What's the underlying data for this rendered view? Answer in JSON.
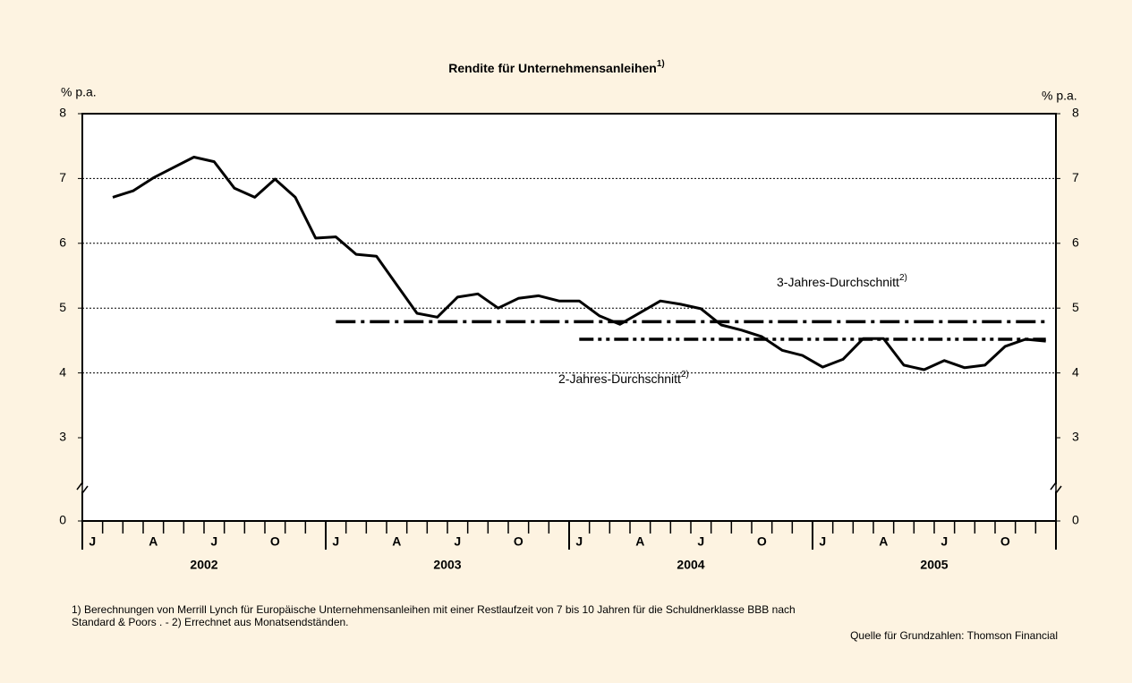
{
  "chart_data": {
    "type": "line",
    "title": "Rendite für Unternehmensanleihen",
    "title_note": "1)",
    "y_label": "% p.a.",
    "y2_label": "% p.a.",
    "categories": [
      "J",
      null,
      null,
      "A",
      null,
      null,
      "J",
      null,
      null,
      "O",
      null,
      null,
      "J",
      null,
      null,
      "A",
      null,
      null,
      "J",
      null,
      null,
      "O",
      null,
      null,
      "J",
      null,
      null,
      "A",
      null,
      null,
      "J",
      null,
      null,
      "O",
      null,
      null,
      "J",
      null,
      null,
      "A",
      null,
      null,
      "J",
      null,
      null,
      "O",
      null,
      null
    ],
    "years": [
      "2002",
      "2003",
      "2004",
      "2005"
    ],
    "series": [
      {
        "name": null,
        "color": "#000000",
        "style": "solid",
        "values": [
          null,
          6.71,
          6.81,
          7.01,
          7.17,
          7.33,
          7.26,
          6.85,
          6.71,
          6.99,
          6.71,
          6.08,
          6.1,
          5.83,
          5.8,
          5.36,
          4.92,
          4.86,
          5.17,
          5.22,
          5.0,
          5.15,
          5.19,
          5.11,
          5.11,
          4.88,
          4.75,
          4.93,
          5.11,
          5.06,
          4.99,
          4.74,
          4.66,
          4.56,
          4.35,
          4.27,
          4.09,
          4.21,
          4.53,
          4.53,
          4.12,
          4.05,
          4.19,
          4.08,
          4.12,
          4.41,
          4.52,
          4.49
        ]
      },
      {
        "name": "3-Jahres-Durchschnitt",
        "note": "2)",
        "color": "#000000",
        "style": "dash-dot",
        "values": [
          null,
          null,
          null,
          null,
          null,
          null,
          null,
          null,
          null,
          null,
          null,
          null,
          4.79,
          4.79,
          4.79,
          4.79,
          4.79,
          4.79,
          4.79,
          4.79,
          4.79,
          4.79,
          4.79,
          4.79,
          4.79,
          4.79,
          4.79,
          4.79,
          4.79,
          4.79,
          4.79,
          4.79,
          4.79,
          4.79,
          4.79,
          4.79,
          4.79,
          4.79,
          4.79,
          4.79,
          4.79,
          4.79,
          4.79,
          4.79,
          4.79,
          4.79,
          4.79,
          4.79
        ]
      },
      {
        "name": "2-Jahres-Durchschnitt",
        "note": "2)",
        "color": "#000000",
        "style": "dash-dot-dot",
        "values": [
          null,
          null,
          null,
          null,
          null,
          null,
          null,
          null,
          null,
          null,
          null,
          null,
          null,
          null,
          null,
          null,
          null,
          null,
          null,
          null,
          null,
          null,
          null,
          null,
          4.52,
          4.52,
          4.52,
          4.52,
          4.52,
          4.52,
          4.52,
          4.52,
          4.52,
          4.52,
          4.52,
          4.52,
          4.52,
          4.52,
          4.52,
          4.52,
          4.52,
          4.52,
          4.52,
          4.52,
          4.52,
          4.52,
          4.52,
          4.52
        ]
      }
    ],
    "ylim": [
      0,
      8
    ],
    "y_break": [
      0,
      3
    ],
    "yticks": [
      0,
      3,
      4,
      5,
      6,
      7,
      8
    ],
    "y2lim": [
      0,
      8
    ],
    "y2ticks": [
      0,
      3,
      4,
      5,
      6,
      7,
      8
    ],
    "grid": true,
    "footnote": "1) Berechnungen von Merrill Lynch für Europäische Unternehmensanleihen mit einer Restlaufzeit von 7 bis 10 Jahren für die Schuldnerklasse BBB nach",
    "footnote_2": "Standard & Poors . - 2) Errechnet aus Monatsendständen.",
    "source": "Quelle für Grundzahlen: Thomson Financial"
  }
}
